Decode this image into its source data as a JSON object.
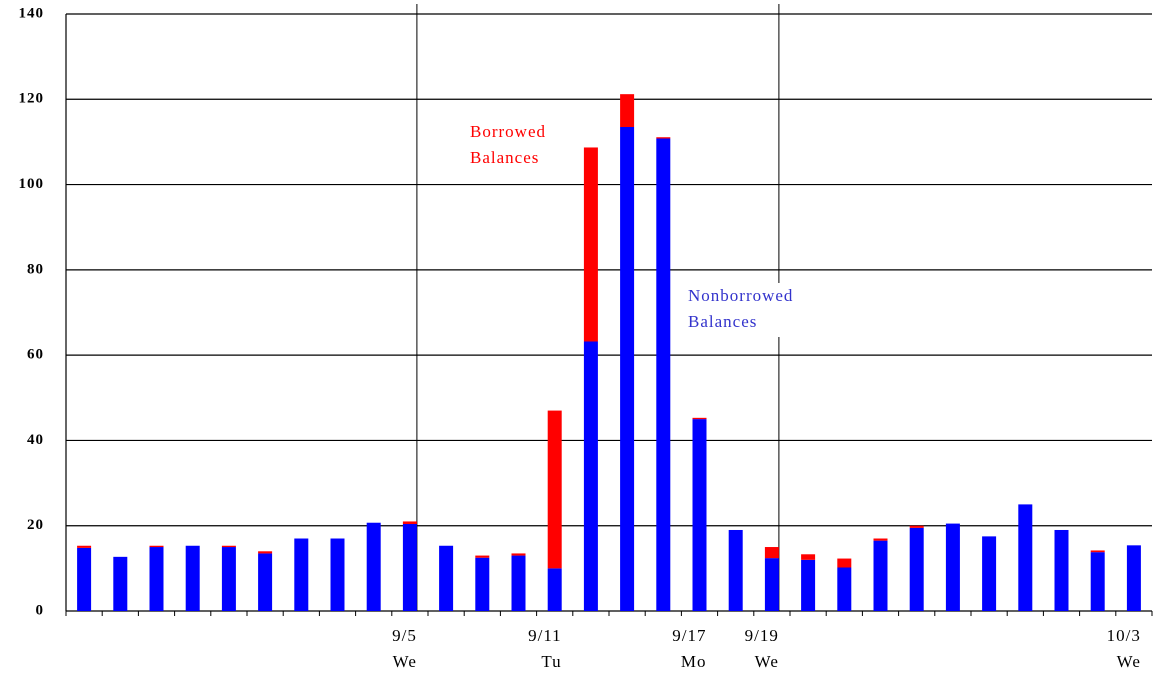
{
  "chart_data": {
    "type": "stacked_bar",
    "categories": [
      null,
      null,
      null,
      null,
      null,
      null,
      null,
      null,
      null,
      "9/5",
      null,
      null,
      null,
      "9/11",
      null,
      null,
      null,
      "9/17",
      null,
      "9/19",
      null,
      null,
      null,
      null,
      null,
      null,
      null,
      null,
      null,
      "10/3"
    ],
    "weekdays": [
      null,
      null,
      null,
      null,
      null,
      null,
      null,
      null,
      null,
      "We",
      null,
      null,
      null,
      "Tu",
      null,
      null,
      null,
      "Mo",
      null,
      "We",
      null,
      null,
      null,
      null,
      null,
      null,
      null,
      null,
      null,
      "We"
    ],
    "series": [
      {
        "name": "Nonborrowed Balances",
        "color": "#0000ff",
        "values": [
          14.8,
          12.7,
          15.0,
          15.3,
          15.0,
          13.5,
          17.0,
          17.0,
          20.7,
          20.4,
          15.3,
          12.5,
          13.0,
          10.0,
          63.2,
          113.5,
          110.8,
          45.0,
          19.0,
          12.4,
          12.0,
          10.2,
          16.5,
          19.5,
          20.5,
          17.5,
          25.0,
          19.0,
          13.8,
          15.4
        ]
      },
      {
        "name": "Borrowed Balances",
        "color": "#ff0000",
        "values": [
          0.5,
          0,
          0.3,
          0,
          0.3,
          0.5,
          0,
          0,
          0,
          0.6,
          0,
          0.5,
          0.5,
          37.0,
          45.5,
          7.7,
          0.3,
          0.3,
          0,
          2.6,
          1.3,
          2.1,
          0.5,
          0.5,
          0,
          0,
          0,
          0,
          0.4,
          0
        ]
      }
    ],
    "annotations": [
      {
        "lines": [
          "Borrowed",
          "Balances"
        ],
        "color": "#ff0000"
      },
      {
        "lines": [
          "Nonborrowed",
          "Balances"
        ],
        "color": "#3333cc"
      }
    ],
    "ylim": [
      0,
      140
    ],
    "yticks": [
      0,
      20,
      40,
      60,
      80,
      100,
      120,
      140
    ],
    "grid": true
  }
}
